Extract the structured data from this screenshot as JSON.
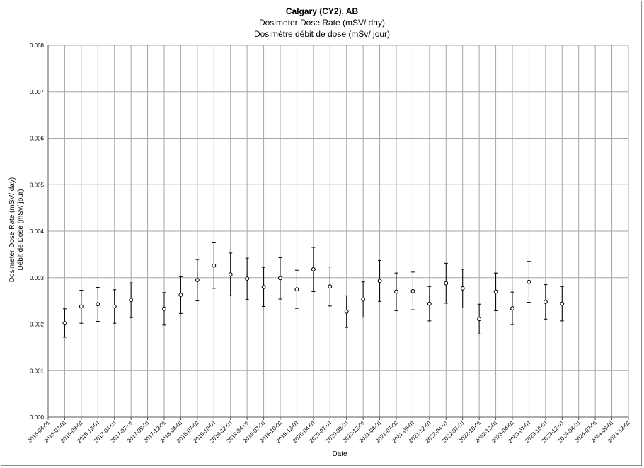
{
  "chart_data": {
    "type": "scatter",
    "title": "Calgary (CY2), AB",
    "subtitle_en": "Dosimeter Dose Rate (mSV/ day)",
    "subtitle_fr": "Dosimètre débit de dose (mSv/ jour)",
    "ylabel_en": "Dosimeter Dose Rate (mSV/ day)",
    "ylabel_fr": "Débit de Dose (mSv/ jour)",
    "xlabel": "Date",
    "ylim": [
      0,
      0.008
    ],
    "y_ticks": [
      "0.000",
      "0.001",
      "0.002",
      "0.003",
      "0.004",
      "0.005",
      "0.006",
      "0.007",
      "0.008"
    ],
    "x_ticks": [
      "2016-04-01",
      "2016-07-01",
      "2016-09-01",
      "2016-12-01",
      "2017-04-01",
      "2017-07-01",
      "2017-09-01",
      "2017-12-01",
      "2018-04-01",
      "2018-07-01",
      "2018-10-01",
      "2018-12-01",
      "2019-04-01",
      "2019-07-01",
      "2019-10-01",
      "2019-12-01",
      "2020-04-01",
      "2020-07-01",
      "2020-09-01",
      "2020-12-01",
      "2021-04-01",
      "2021-07-01",
      "2021-09-01",
      "2021-12-01",
      "2022-04-01",
      "2022-07-01",
      "2022-10-01",
      "2022-12-01",
      "2023-04-01",
      "2023-07-01",
      "2023-10-01",
      "2023-12-01",
      "2024-04-01",
      "2024-07-01",
      "2024-09-01",
      "2024-12-01"
    ],
    "grid": true,
    "legend": "none",
    "series": [
      {
        "marker": "open-circle",
        "points": [
          {
            "x": "2016-07-01",
            "y": 0.00202,
            "lo": 0.00172,
            "hi": 0.00233
          },
          {
            "x": "2016-09-01",
            "y": 0.00238,
            "lo": 0.00202,
            "hi": 0.00273
          },
          {
            "x": "2016-12-01",
            "y": 0.00243,
            "lo": 0.00206,
            "hi": 0.00279
          },
          {
            "x": "2017-04-01",
            "y": 0.00238,
            "lo": 0.00202,
            "hi": 0.00274
          },
          {
            "x": "2017-07-01",
            "y": 0.00252,
            "lo": 0.00214,
            "hi": 0.00289
          },
          {
            "x": "2017-12-01",
            "y": 0.00233,
            "lo": 0.00198,
            "hi": 0.00268
          },
          {
            "x": "2018-04-01",
            "y": 0.00263,
            "lo": 0.00223,
            "hi": 0.00302
          },
          {
            "x": "2018-07-01",
            "y": 0.00295,
            "lo": 0.0025,
            "hi": 0.00339
          },
          {
            "x": "2018-10-01",
            "y": 0.00326,
            "lo": 0.00277,
            "hi": 0.00375
          },
          {
            "x": "2018-12-01",
            "y": 0.00307,
            "lo": 0.00261,
            "hi": 0.00353
          },
          {
            "x": "2019-04-01",
            "y": 0.00298,
            "lo": 0.00253,
            "hi": 0.00342
          },
          {
            "x": "2019-07-01",
            "y": 0.0028,
            "lo": 0.00238,
            "hi": 0.00322
          },
          {
            "x": "2019-10-01",
            "y": 0.00299,
            "lo": 0.00254,
            "hi": 0.00343
          },
          {
            "x": "2019-12-01",
            "y": 0.00275,
            "lo": 0.00234,
            "hi": 0.00316
          },
          {
            "x": "2020-04-01",
            "y": 0.00318,
            "lo": 0.0027,
            "hi": 0.00365
          },
          {
            "x": "2020-07-01",
            "y": 0.00281,
            "lo": 0.00239,
            "hi": 0.00323
          },
          {
            "x": "2020-09-01",
            "y": 0.00227,
            "lo": 0.00193,
            "hi": 0.00261
          },
          {
            "x": "2020-12-01",
            "y": 0.00253,
            "lo": 0.00215,
            "hi": 0.00291
          },
          {
            "x": "2021-04-01",
            "y": 0.00293,
            "lo": 0.00249,
            "hi": 0.00337
          },
          {
            "x": "2021-07-01",
            "y": 0.0027,
            "lo": 0.00229,
            "hi": 0.0031
          },
          {
            "x": "2021-09-01",
            "y": 0.00271,
            "lo": 0.00231,
            "hi": 0.00312
          },
          {
            "x": "2021-12-01",
            "y": 0.00244,
            "lo": 0.00207,
            "hi": 0.00281
          },
          {
            "x": "2022-04-01",
            "y": 0.00288,
            "lo": 0.00245,
            "hi": 0.00331
          },
          {
            "x": "2022-07-01",
            "y": 0.00277,
            "lo": 0.00235,
            "hi": 0.00318
          },
          {
            "x": "2022-10-01",
            "y": 0.00211,
            "lo": 0.00179,
            "hi": 0.00243
          },
          {
            "x": "2022-12-01",
            "y": 0.0027,
            "lo": 0.00229,
            "hi": 0.0031
          },
          {
            "x": "2023-04-01",
            "y": 0.00234,
            "lo": 0.00199,
            "hi": 0.00269
          },
          {
            "x": "2023-07-01",
            "y": 0.00291,
            "lo": 0.00247,
            "hi": 0.00335
          },
          {
            "x": "2023-10-01",
            "y": 0.00248,
            "lo": 0.00211,
            "hi": 0.00285
          },
          {
            "x": "2023-12-01",
            "y": 0.00244,
            "lo": 0.00207,
            "hi": 0.00281
          }
        ]
      }
    ]
  }
}
